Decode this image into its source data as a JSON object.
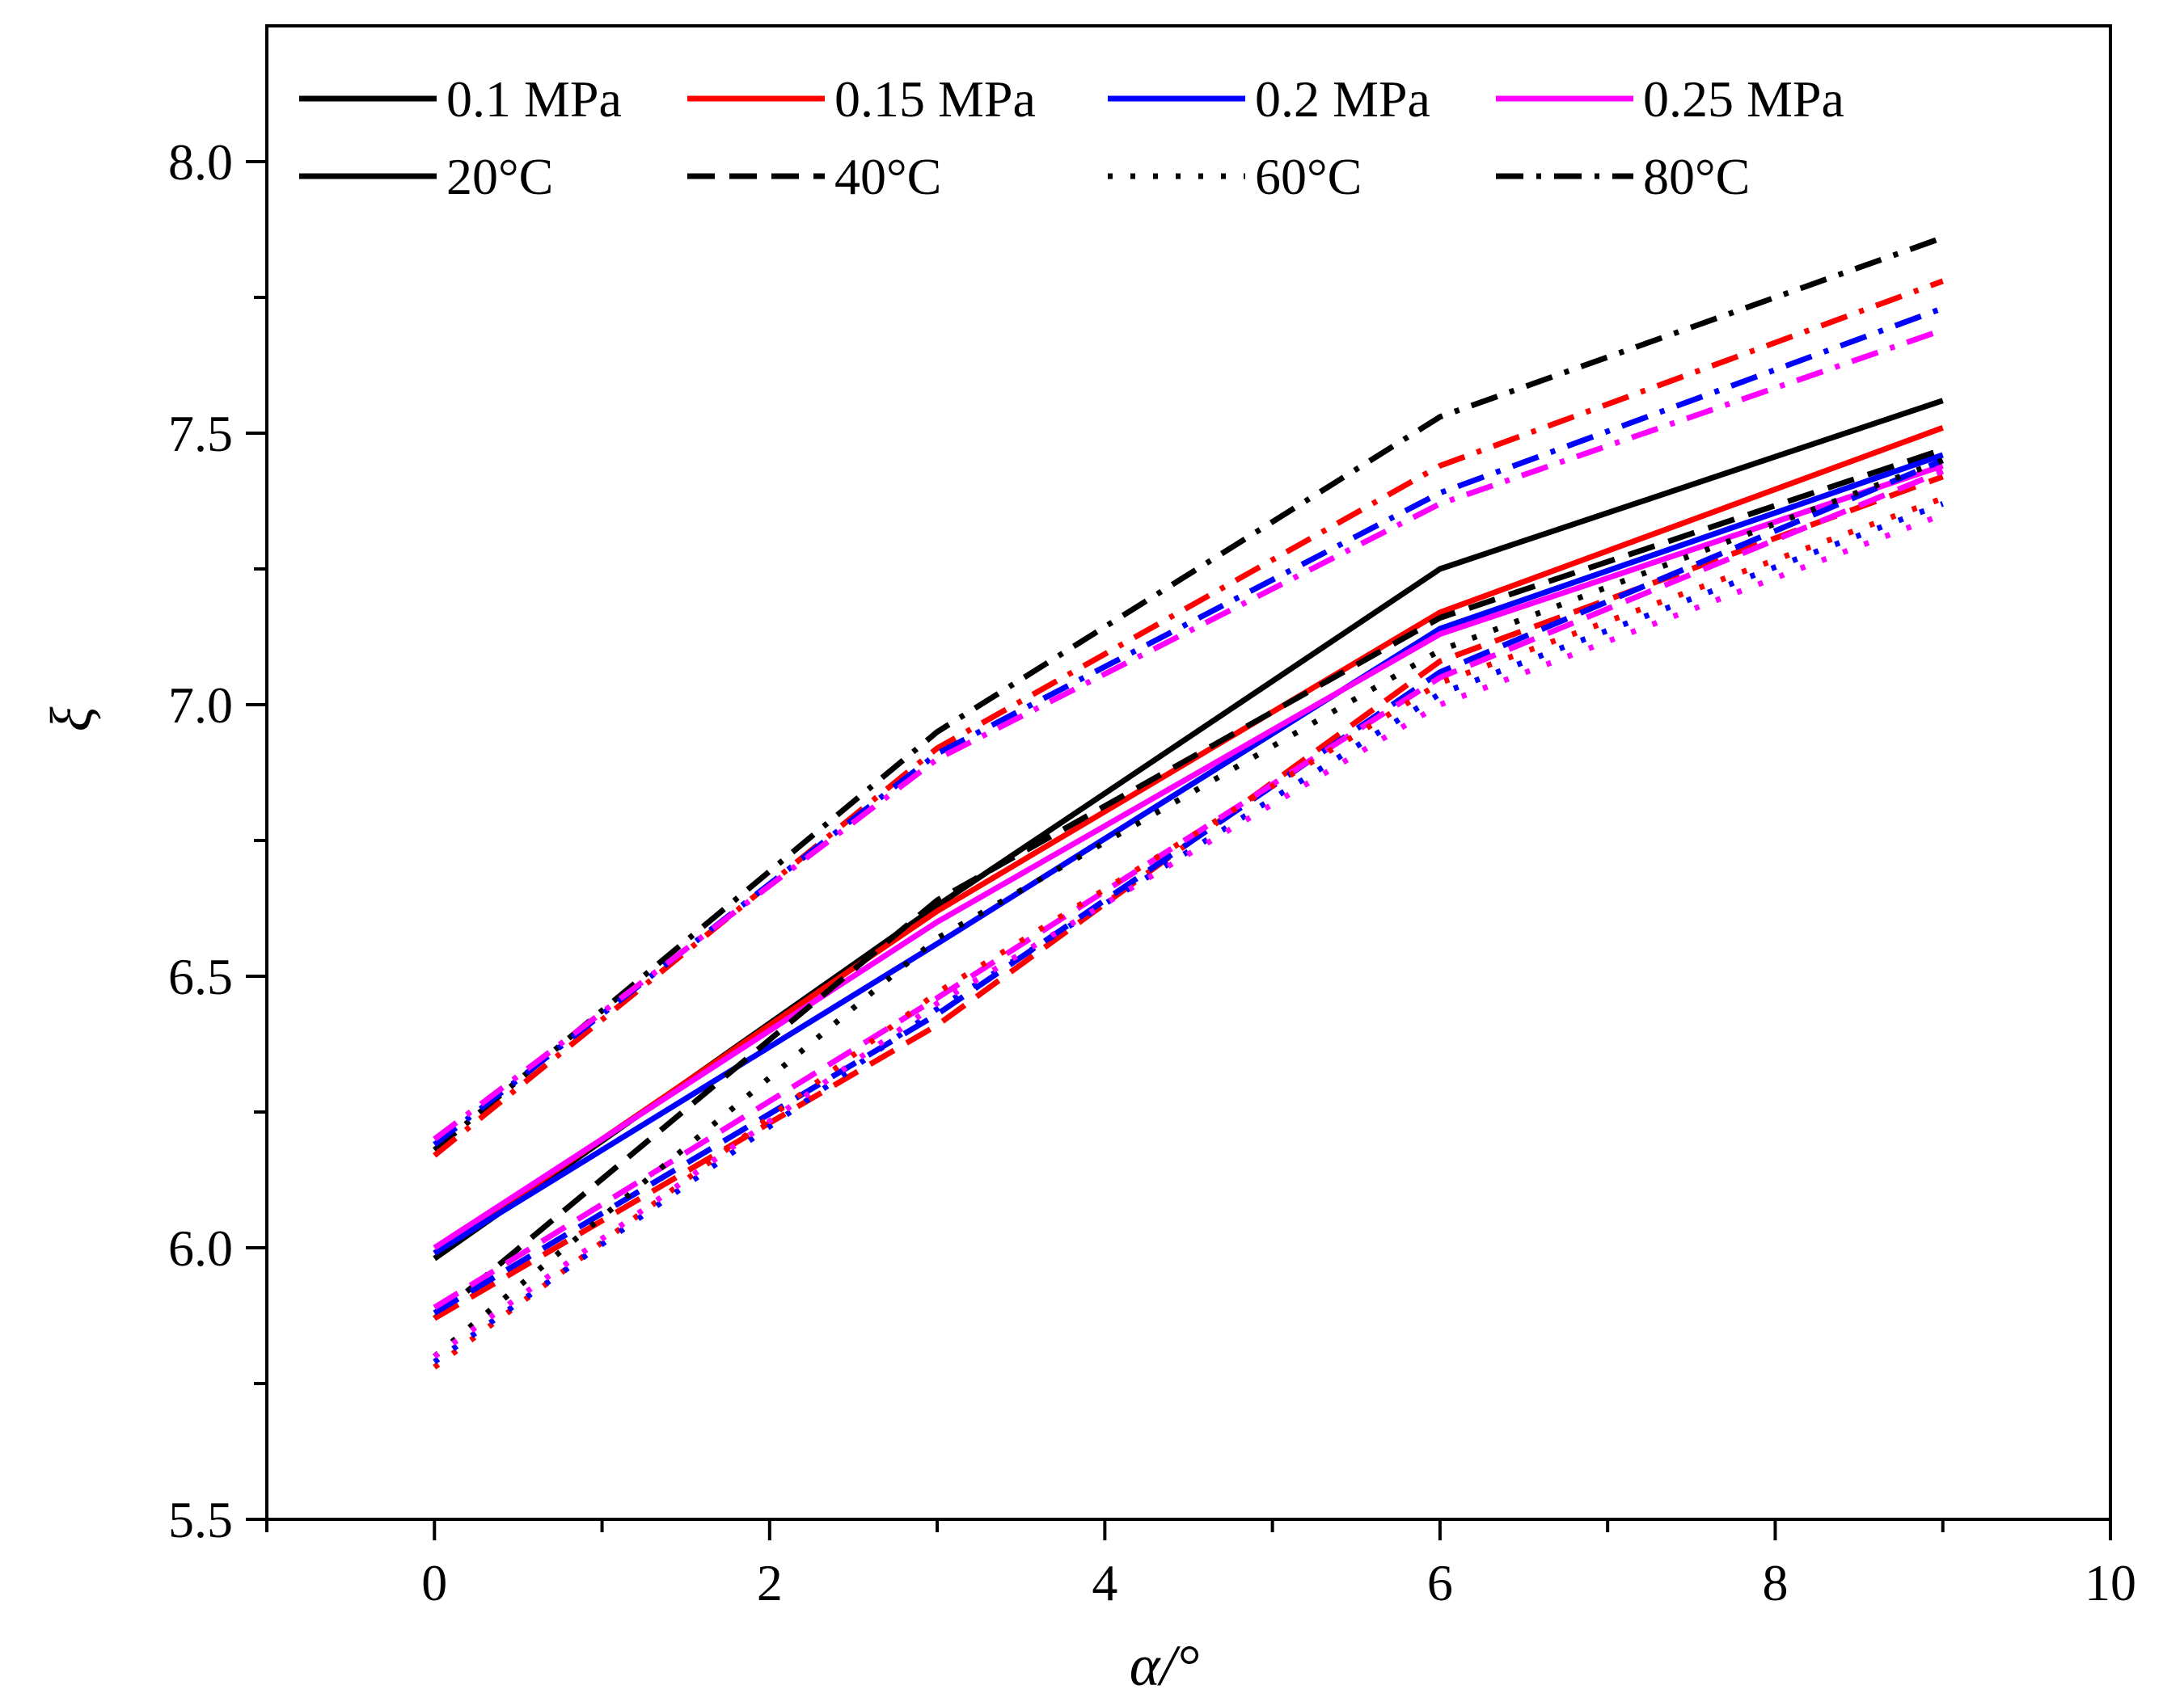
{
  "chart_data": {
    "type": "line",
    "title": "",
    "xlabel": "α/°",
    "ylabel": "ξ",
    "xlim": [
      -1,
      10
    ],
    "ylim": [
      5.5,
      8.25
    ],
    "x_ticks": [
      0,
      2,
      4,
      6,
      8,
      10
    ],
    "x_tick_labels": [
      "0",
      "2",
      "4",
      "6",
      "8",
      "10"
    ],
    "y_ticks": [
      5.5,
      6.0,
      6.5,
      7.0,
      7.5,
      8.0
    ],
    "y_tick_labels": [
      "5.5",
      "6.0",
      "6.5",
      "7.0",
      "7.5",
      "8.0"
    ],
    "grid": false,
    "legend_position": "top-left",
    "legend": {
      "pressures": [
        {
          "label": "0.1 MPa",
          "color": "#000000"
        },
        {
          "label": "0.15  MPa",
          "color": "#ff0000"
        },
        {
          "label": "0.2 MPa",
          "color": "#0000ff"
        },
        {
          "label": "0.25 MPa",
          "color": "#ff00ff"
        }
      ],
      "temperatures": [
        {
          "label": "20°C",
          "style": "solid"
        },
        {
          "label": "40°C",
          "style": "dash"
        },
        {
          "label": "60°C",
          "style": "dot"
        },
        {
          "label": "80°C",
          "style": "dashdot"
        }
      ]
    },
    "x": [
      0,
      3,
      6,
      9
    ],
    "series": [
      {
        "name": "0.1 MPa, 20°C",
        "pressure": "0.1 MPa",
        "temperature": "20°C",
        "color": "#000000",
        "style": "solid",
        "values": [
          5.98,
          6.63,
          7.25,
          7.56
        ]
      },
      {
        "name": "0.15 MPa, 20°C",
        "pressure": "0.15 MPa",
        "temperature": "20°C",
        "color": "#ff0000",
        "style": "solid",
        "values": [
          5.99,
          6.62,
          7.17,
          7.51
        ]
      },
      {
        "name": "0.2 MPa, 20°C",
        "pressure": "0.2 MPa",
        "temperature": "20°C",
        "color": "#0000ff",
        "style": "solid",
        "values": [
          5.99,
          6.56,
          7.14,
          7.46
        ]
      },
      {
        "name": "0.25 MPa, 20°C",
        "pressure": "0.25 MPa",
        "temperature": "20°C",
        "color": "#ff00ff",
        "style": "solid",
        "values": [
          6.0,
          6.6,
          7.13,
          7.44
        ]
      },
      {
        "name": "0.1 MPa, 40°C",
        "pressure": "0.1 MPa",
        "temperature": "40°C",
        "color": "#000000",
        "style": "dash",
        "values": [
          5.87,
          6.64,
          7.16,
          7.47
        ]
      },
      {
        "name": "0.15 MPa, 40°C",
        "pressure": "0.15 MPa",
        "temperature": "40°C",
        "color": "#ff0000",
        "style": "dash",
        "values": [
          5.87,
          6.41,
          7.08,
          7.42
        ]
      },
      {
        "name": "0.2 MPa, 40°C",
        "pressure": "0.2 MPa",
        "temperature": "40°C",
        "color": "#0000ff",
        "style": "dash",
        "values": [
          5.88,
          6.43,
          7.06,
          7.45
        ]
      },
      {
        "name": "0.25 MPa, 40°C",
        "pressure": "0.25 MPa",
        "temperature": "40°C",
        "color": "#ff00ff",
        "style": "dash",
        "values": [
          5.89,
          6.46,
          7.05,
          7.43
        ]
      },
      {
        "name": "0.1 MPa, 60°C",
        "pressure": "0.1 MPa",
        "temperature": "60°C",
        "color": "#000000",
        "style": "dot",
        "values": [
          5.8,
          6.57,
          7.1,
          7.45
        ]
      },
      {
        "name": "0.15 MPa, 60°C",
        "pressure": "0.15 MPa",
        "temperature": "60°C",
        "color": "#ff0000",
        "style": "dot",
        "values": [
          5.78,
          6.47,
          7.04,
          7.38
        ]
      },
      {
        "name": "0.2 MPa, 60°C",
        "pressure": "0.2 MPa",
        "temperature": "60°C",
        "color": "#0000ff",
        "style": "dot",
        "values": [
          5.79,
          6.44,
          7.02,
          7.37
        ]
      },
      {
        "name": "0.25 MPa, 60°C",
        "pressure": "0.25 MPa",
        "temperature": "60°C",
        "color": "#ff00ff",
        "style": "dot",
        "values": [
          5.8,
          6.45,
          7.0,
          7.35
        ]
      },
      {
        "name": "0.1 MPa, 80°C",
        "pressure": "0.1 MPa",
        "temperature": "80°C",
        "color": "#000000",
        "style": "dashdot",
        "values": [
          6.18,
          6.95,
          7.53,
          7.86
        ]
      },
      {
        "name": "0.15 MPa, 80°C",
        "pressure": "0.15 MPa",
        "temperature": "80°C",
        "color": "#ff0000",
        "style": "dashdot",
        "values": [
          6.17,
          6.92,
          7.44,
          7.78
        ]
      },
      {
        "name": "0.2 MPa, 80°C",
        "pressure": "0.2 MPa",
        "temperature": "80°C",
        "color": "#0000ff",
        "style": "dashdot",
        "values": [
          6.19,
          6.91,
          7.39,
          7.73
        ]
      },
      {
        "name": "0.25 MPa, 80°C",
        "pressure": "0.25 MPa",
        "temperature": "80°C",
        "color": "#ff00ff",
        "style": "dashdot",
        "values": [
          6.2,
          6.9,
          7.37,
          7.69
        ]
      }
    ]
  }
}
